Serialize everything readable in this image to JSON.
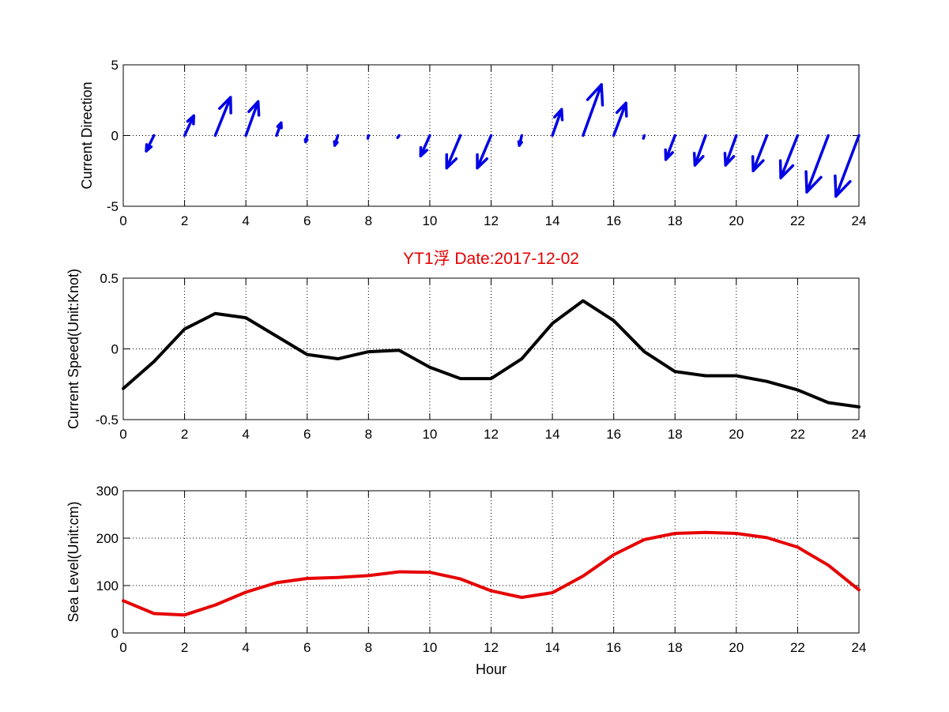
{
  "chart_data": [
    {
      "type": "quiver",
      "ylabel": "Current Direction",
      "xlim": [
        0,
        24
      ],
      "ylim": [
        -5,
        5
      ],
      "x_ticks": [
        "0",
        "2",
        "4",
        "6",
        "8",
        "10",
        "12",
        "14",
        "16",
        "18",
        "20",
        "22",
        "24"
      ],
      "y_ticks": [
        "-5",
        "0",
        "5"
      ],
      "grid": true,
      "color": "#0000e6",
      "vectors": [
        {
          "x": 1,
          "u": -0.25,
          "v": -1.1
        },
        {
          "x": 2,
          "u": 0.3,
          "v": 1.4
        },
        {
          "x": 3,
          "u": 0.5,
          "v": 2.7
        },
        {
          "x": 4,
          "u": 0.4,
          "v": 2.4
        },
        {
          "x": 5,
          "u": 0.15,
          "v": 0.9
        },
        {
          "x": 6,
          "u": -0.05,
          "v": -0.45
        },
        {
          "x": 7,
          "u": -0.1,
          "v": -0.7
        },
        {
          "x": 8,
          "u": -0.02,
          "v": -0.2
        },
        {
          "x": 9,
          "u": -0.05,
          "v": -0.15
        },
        {
          "x": 10,
          "u": -0.3,
          "v": -1.45
        },
        {
          "x": 11,
          "u": -0.45,
          "v": -2.3
        },
        {
          "x": 12,
          "u": -0.45,
          "v": -2.3
        },
        {
          "x": 13,
          "u": -0.08,
          "v": -0.7
        },
        {
          "x": 14,
          "u": 0.3,
          "v": 1.85
        },
        {
          "x": 15,
          "u": 0.6,
          "v": 3.6
        },
        {
          "x": 16,
          "u": 0.4,
          "v": 2.3
        },
        {
          "x": 17,
          "u": -0.03,
          "v": -0.2
        },
        {
          "x": 18,
          "u": -0.3,
          "v": -1.7
        },
        {
          "x": 19,
          "u": -0.35,
          "v": -2.1
        },
        {
          "x": 20,
          "u": -0.35,
          "v": -2.1
        },
        {
          "x": 21,
          "u": -0.45,
          "v": -2.5
        },
        {
          "x": 22,
          "u": -0.55,
          "v": -3.0
        },
        {
          "x": 23,
          "u": -0.7,
          "v": -4.0
        },
        {
          "x": 24,
          "u": -0.75,
          "v": -4.3
        }
      ]
    },
    {
      "type": "line",
      "title": "YT1浮    Date:2017-12-02",
      "title_color": "#e60000",
      "ylabel": "Current Speed(Unit:Knot)",
      "xlim": [
        0,
        24
      ],
      "ylim": [
        -0.5,
        0.5
      ],
      "x_ticks": [
        "0",
        "2",
        "4",
        "6",
        "8",
        "10",
        "12",
        "14",
        "16",
        "18",
        "20",
        "22",
        "24"
      ],
      "y_ticks": [
        "-0.5",
        "0",
        "0.5"
      ],
      "grid": true,
      "color": "#000000",
      "x": [
        0,
        1,
        2,
        3,
        4,
        5,
        6,
        7,
        8,
        9,
        10,
        11,
        12,
        13,
        14,
        15,
        16,
        17,
        18,
        19,
        20,
        21,
        22,
        23,
        24
      ],
      "values": [
        -0.28,
        -0.09,
        0.14,
        0.25,
        0.22,
        0.09,
        -0.04,
        -0.07,
        -0.02,
        -0.01,
        -0.13,
        -0.21,
        -0.21,
        -0.07,
        0.18,
        0.34,
        0.2,
        -0.02,
        -0.16,
        -0.19,
        -0.19,
        -0.23,
        -0.29,
        -0.38,
        -0.41
      ]
    },
    {
      "type": "line",
      "xlabel": "Hour",
      "ylabel": "Sea Level(Unit:cm)",
      "xlim": [
        0,
        24
      ],
      "ylim": [
        0,
        300
      ],
      "x_ticks": [
        "0",
        "2",
        "4",
        "6",
        "8",
        "10",
        "12",
        "14",
        "16",
        "18",
        "20",
        "22",
        "24"
      ],
      "y_ticks": [
        "0",
        "100",
        "200",
        "300"
      ],
      "grid": true,
      "color": "#e60000",
      "x": [
        0,
        1,
        2,
        3,
        4,
        5,
        6,
        7,
        8,
        9,
        10,
        11,
        12,
        13,
        14,
        15,
        16,
        17,
        18,
        19,
        20,
        21,
        22,
        23,
        24
      ],
      "values": [
        68,
        41,
        38,
        59,
        86,
        106,
        115,
        117,
        121,
        129,
        128,
        114,
        89,
        75,
        85,
        120,
        165,
        197,
        210,
        212,
        210,
        201,
        181,
        143,
        91
      ]
    }
  ]
}
